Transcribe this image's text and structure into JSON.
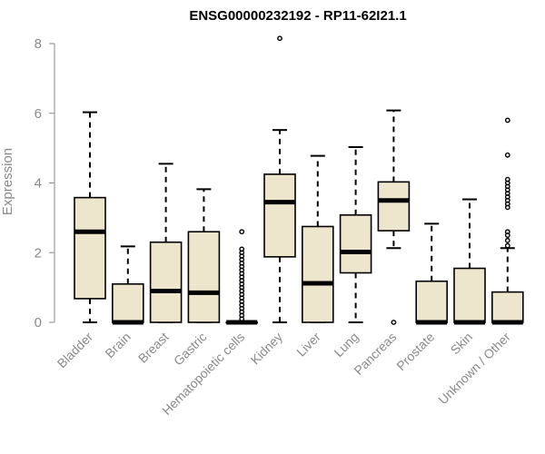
{
  "chart_data": {
    "type": "boxplot",
    "title": "ENSG00000232192 - RP11-62I21.1",
    "ylabel": "Expression",
    "xlabel": "",
    "ylim": [
      0,
      8
    ],
    "yticks": [
      0,
      2,
      4,
      6,
      8
    ],
    "grid": false,
    "box_color": "#ede6cc",
    "categories": [
      "Bladder",
      "Brain",
      "Breast",
      "Gastric",
      "Hematopoietic cells",
      "Kidney",
      "Liver",
      "Lung",
      "Pancreas",
      "Prostate",
      "Skin",
      "Unknown / Other"
    ],
    "boxes": [
      {
        "min": 0,
        "q1": 0.68,
        "median": 2.6,
        "q3": 3.58,
        "max": 6.03,
        "outliers": []
      },
      {
        "min": 0,
        "q1": 0,
        "median": 0,
        "q3": 1.1,
        "max": 2.18,
        "outliers": []
      },
      {
        "min": 0,
        "q1": 0,
        "median": 0.9,
        "q3": 2.3,
        "max": 4.55,
        "outliers": []
      },
      {
        "min": 0,
        "q1": 0,
        "median": 0.85,
        "q3": 2.6,
        "max": 3.82,
        "outliers": []
      },
      {
        "min": 0,
        "q1": 0,
        "median": 0,
        "q3": 0,
        "max": 0,
        "outliers": [
          0.1,
          0.2,
          0.3,
          0.4,
          0.5,
          0.6,
          0.7,
          0.8,
          0.9,
          1.0,
          1.1,
          1.2,
          1.3,
          1.4,
          1.5,
          1.6,
          1.7,
          1.8,
          1.9,
          2.0,
          2.1,
          2.6
        ]
      },
      {
        "min": 0,
        "q1": 1.88,
        "median": 3.45,
        "q3": 4.25,
        "max": 5.52,
        "outliers": [
          8.15
        ]
      },
      {
        "min": 0,
        "q1": 0,
        "median": 1.12,
        "q3": 2.75,
        "max": 4.78,
        "outliers": []
      },
      {
        "min": 0,
        "q1": 1.42,
        "median": 2.02,
        "q3": 3.08,
        "max": 5.03,
        "outliers": []
      },
      {
        "min": 2.13,
        "q1": 2.63,
        "median": 3.5,
        "q3": 4.03,
        "max": 6.08,
        "outliers": [
          0
        ]
      },
      {
        "min": 0,
        "q1": 0,
        "median": 0,
        "q3": 1.18,
        "max": 2.83,
        "outliers": []
      },
      {
        "min": 0,
        "q1": 0,
        "median": 0,
        "q3": 1.55,
        "max": 3.53,
        "outliers": []
      },
      {
        "min": 0,
        "q1": 0,
        "median": 0,
        "q3": 0.87,
        "max": 2.13,
        "outliers": [
          2.2,
          2.35,
          2.5,
          2.6,
          3.3,
          3.4,
          3.5,
          3.6,
          3.7,
          3.8,
          3.9,
          4.0,
          4.1,
          4.8,
          5.8
        ]
      }
    ]
  }
}
